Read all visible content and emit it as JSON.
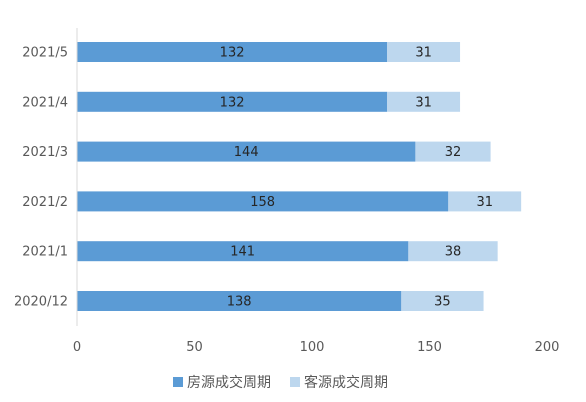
{
  "chart_data": {
    "type": "bar",
    "orientation": "horizontal",
    "stacked": true,
    "categories": [
      "2021/5",
      "2021/4",
      "2021/3",
      "2021/2",
      "2021/1",
      "2020/12"
    ],
    "series": [
      {
        "name": "房源成交周期",
        "values": [
          132,
          132,
          144,
          158,
          141,
          138
        ],
        "color": "#5b9bd5"
      },
      {
        "name": "客源成交周期",
        "values": [
          31,
          31,
          32,
          31,
          38,
          35
        ],
        "color": "#bdd7ee"
      }
    ],
    "xlim": [
      0,
      200
    ],
    "xticks": [
      0,
      50,
      100,
      150,
      200
    ],
    "grid": false,
    "legend_position": "bottom"
  }
}
